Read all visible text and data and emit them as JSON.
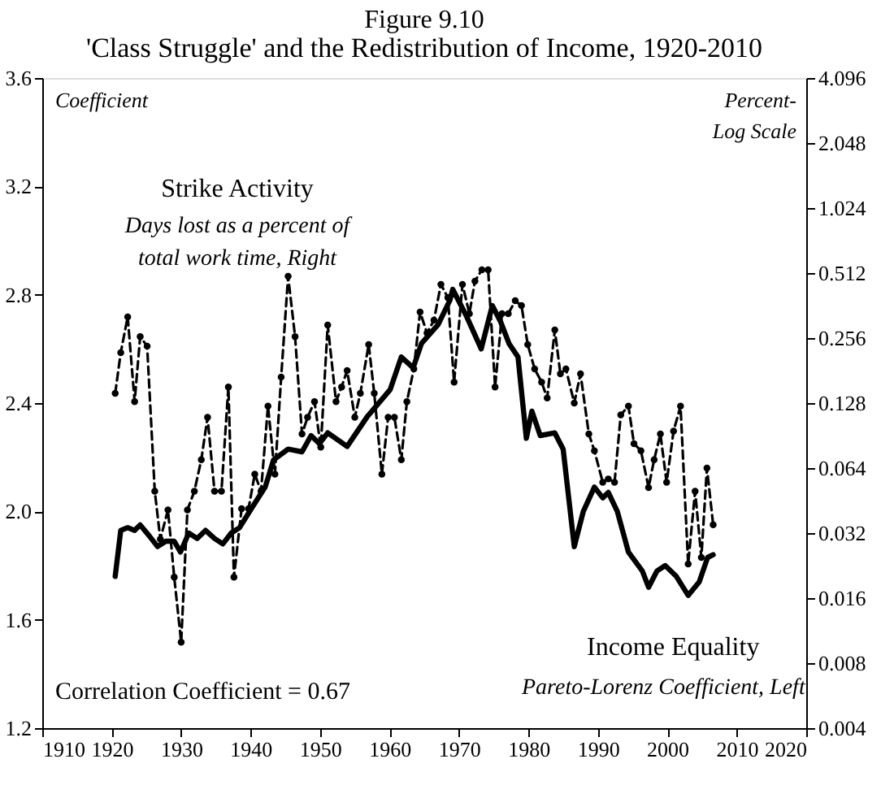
{
  "chart_data": {
    "type": "line",
    "title": "Figure 9.10",
    "subtitle": "'Class Struggle' and the Redistribution of Income, 1920-2010",
    "ylabel": "Coefficient",
    "y2label": "Percent-\nLog Scale",
    "annotations": [
      "Days lost as a percent of\ntotal work time, Right",
      "Pareto-Lorenz Coefficient,  Left",
      "Correlation Coefficient  =  0.67"
    ],
    "xlim": [
      1910,
      2020
    ],
    "xticks": [
      1910,
      1920,
      1930,
      1940,
      1950,
      1960,
      1970,
      1980,
      1990,
      2000,
      2010,
      2020
    ],
    "ylim": [
      1.2,
      3.6
    ],
    "yticks": [
      1.2,
      1.6,
      {
        "value": 2,
        "label": "2.0"
      },
      2.4,
      2.8,
      3.2,
      3.6
    ],
    "y2lim": [
      0.004,
      4.096
    ],
    "y2ticks": [
      0.004,
      0.008,
      0.016,
      0.032,
      0.064,
      0.128,
      0.256,
      0.512,
      1.024,
      2.048,
      4.096
    ],
    "log": "y2",
    "grid": false,
    "series": [
      {
        "name": "Strike Activity",
        "color": "#000000",
        "axis": "y2",
        "line_style": "dashed",
        "marker": "circle",
        "x": [
          1920.5,
          1921.3,
          1922.3,
          1923.3,
          1924.1,
          1925.1,
          1926.2,
          1927.0,
          1928.1,
          1929.0,
          1930.0,
          1930.9,
          1931.9,
          1932.9,
          1933.8,
          1934.8,
          1935.8,
          1936.8,
          1937.6,
          1938.7,
          1939.7,
          1940.6,
          1941.5,
          1942.5,
          1943.5,
          1944.4,
          1945.4,
          1946.4,
          1947.4,
          1948.2,
          1949.2,
          1950.1,
          1951.1,
          1952.3,
          1953.1,
          1953.9,
          1955.0,
          1955.8,
          1957.0,
          1957.8,
          1958.9,
          1959.8,
          1960.7,
          1961.7,
          1962.5,
          1963.5,
          1964.4,
          1965.4,
          1966.4,
          1967.4,
          1968.4,
          1969.3,
          1970.5,
          1971.5,
          1972.3,
          1973.3,
          1974.2,
          1975.2,
          1976.2,
          1977.1,
          1978.1,
          1979.0,
          1979.9,
          1980.9,
          1981.9,
          1982.7,
          1983.8,
          1984.6,
          1985.4,
          1986.6,
          1987.5,
          1988.7,
          1989.5,
          1990.7,
          1991.5,
          1992.4,
          1993.3,
          1994.4,
          1995.2,
          1996.2,
          1997.3,
          1998.1,
          1999.0,
          1999.9,
          2000.9,
          2001.9,
          2003.0,
          2004.0,
          2004.9,
          2005.7,
          2006.6
        ],
        "values": [
          0.142,
          0.219,
          0.321,
          0.13,
          0.26,
          0.235,
          0.05,
          0.03,
          0.041,
          0.02,
          0.01,
          0.041,
          0.05,
          0.07,
          0.11,
          0.05,
          0.05,
          0.152,
          0.02,
          0.0415,
          0.0415,
          0.06,
          0.05,
          0.124,
          0.06,
          0.169,
          0.495,
          0.26,
          0.092,
          0.11,
          0.13,
          0.08,
          0.294,
          0.13,
          0.152,
          0.181,
          0.11,
          0.142,
          0.239,
          0.142,
          0.06,
          0.11,
          0.11,
          0.07,
          0.13,
          0.184,
          0.338,
          0.27,
          0.31,
          0.454,
          0.394,
          0.16,
          0.454,
          0.332,
          0.47,
          0.53,
          0.53,
          0.152,
          0.332,
          0.332,
          0.381,
          0.362,
          0.239,
          0.184,
          0.16,
          0.135,
          0.279,
          0.175,
          0.184,
          0.128,
          0.175,
          0.092,
          0.077,
          0.055,
          0.057,
          0.055,
          0.113,
          0.124,
          0.083,
          0.077,
          0.052,
          0.07,
          0.092,
          0.055,
          0.095,
          0.124,
          0.023,
          0.05,
          0.0247,
          0.064,
          0.035
        ]
      },
      {
        "name": "Income Equality",
        "color": "#000000",
        "line_style": "solid",
        "marker": "none",
        "x": [
          1920.5,
          1921.3,
          1922.3,
          1923.3,
          1924.1,
          1925.4,
          1926.6,
          1927.8,
          1929.0,
          1929.9,
          1931.1,
          1932.3,
          1933.5,
          1934.8,
          1936.0,
          1937.2,
          1938.4,
          1940.1,
          1942.1,
          1943.3,
          1945.4,
          1947.4,
          1948.7,
          1949.9,
          1951.1,
          1953.9,
          1956.8,
          1960.1,
          1961.7,
          1963.4,
          1964.6,
          1967.0,
          1968.7,
          1969.1,
          1971.1,
          1973.2,
          1974.8,
          1976.0,
          1977.2,
          1978.5,
          1979.7,
          1980.5,
          1981.7,
          1983.8,
          1985.0,
          1986.6,
          1987.9,
          1989.5,
          1990.7,
          1991.5,
          1992.8,
          1994.4,
          1996.4,
          1997.3,
          1998.5,
          1999.7,
          2001.3,
          2003.0,
          2004.6,
          2005.8,
          2006.6
        ],
        "values": [
          1.76,
          1.93,
          1.94,
          1.93,
          1.95,
          1.91,
          1.87,
          1.89,
          1.89,
          1.85,
          1.92,
          1.9,
          1.93,
          1.9,
          1.88,
          1.92,
          1.94,
          2.01,
          2.09,
          2.19,
          2.23,
          2.22,
          2.28,
          2.25,
          2.29,
          2.24,
          2.35,
          2.45,
          2.57,
          2.53,
          2.62,
          2.69,
          2.78,
          2.82,
          2.72,
          2.6,
          2.76,
          2.7,
          2.62,
          2.57,
          2.27,
          2.37,
          2.28,
          2.29,
          2.23,
          1.87,
          2.0,
          2.09,
          2.05,
          2.07,
          2.0,
          1.85,
          1.78,
          1.72,
          1.78,
          1.8,
          1.76,
          1.69,
          1.74,
          1.83,
          1.84
        ]
      }
    ]
  }
}
